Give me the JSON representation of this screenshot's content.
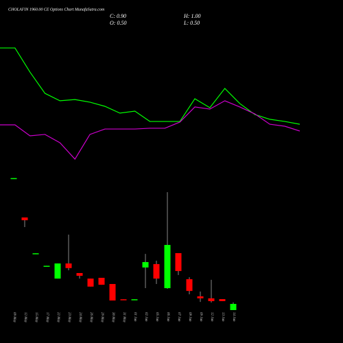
{
  "chart_data": {
    "type": "candlestick",
    "title": "CHOLAFIN 1960.00 CE Options Chart MunafaSutra.com",
    "ohlc_labels": [
      "C: 0.90",
      "H: 1.00",
      "O: 0.50",
      "L: 0.50"
    ],
    "categories": [
      "09 May",
      "12 May",
      "15 May",
      "17 May",
      "22 May",
      "23 May",
      "24 May",
      "26 May",
      "29 May",
      "30 May",
      "31 May",
      "01 Jun",
      "02 Jun",
      "05 Jun",
      "06 Jun",
      "07 Jun",
      "08 Jun",
      "09 Jun",
      "12 Jun",
      "13 Jun",
      "14 Jun"
    ],
    "open": [
      9.0,
      6.5,
      4.15,
      3.34,
      2.54,
      3.52,
      2.9,
      2.54,
      2.59,
      2.19,
      1.2,
      1.17,
      3.26,
      3.48,
      1.92,
      4.19,
      2.5,
      1.39,
      1.26,
      1.21,
      0.5
    ],
    "high": [
      9.05,
      6.5,
      4.18,
      3.37,
      3.52,
      5.39,
      2.9,
      2.54,
      2.59,
      2.19,
      1.2,
      1.2,
      4.14,
      3.7,
      8.14,
      4.19,
      2.63,
      1.7,
      2.46,
      1.21,
      1.0
    ],
    "low": [
      9.0,
      5.88,
      4.15,
      3.34,
      2.54,
      3.08,
      2.54,
      2.02,
      2.14,
      1.12,
      1.17,
      1.17,
      1.92,
      2.19,
      1.88,
      2.77,
      1.52,
      1.03,
      0.99,
      1.08,
      0.5
    ],
    "close": [
      9.05,
      6.32,
      4.18,
      3.37,
      3.52,
      3.22,
      2.72,
      2.02,
      2.14,
      1.12,
      1.17,
      1.2,
      3.61,
      2.54,
      4.72,
      3.03,
      1.74,
      1.26,
      1.08,
      1.08,
      0.9
    ],
    "up_color": "#00ff00",
    "down_color": "#ff0000",
    "series": [
      {
        "color": "#00ff00",
        "values": [
          17.48,
          17.48,
          15.92,
          14.54,
          14.06,
          14.14,
          13.97,
          13.7,
          13.26,
          13.39,
          12.72,
          12.72,
          12.72,
          14.19,
          13.61,
          14.86,
          13.88,
          13.17,
          12.86,
          12.72,
          12.54
        ]
      },
      {
        "color": "#cc00cc",
        "values": [
          12.5,
          12.5,
          11.79,
          11.88,
          11.34,
          10.28,
          11.88,
          12.23,
          12.23,
          12.23,
          12.28,
          12.28,
          12.68,
          13.66,
          13.52,
          14.06,
          13.66,
          13.21,
          12.54,
          12.41,
          12.1
        ]
      }
    ],
    "ylim": [
      0,
      20
    ]
  }
}
